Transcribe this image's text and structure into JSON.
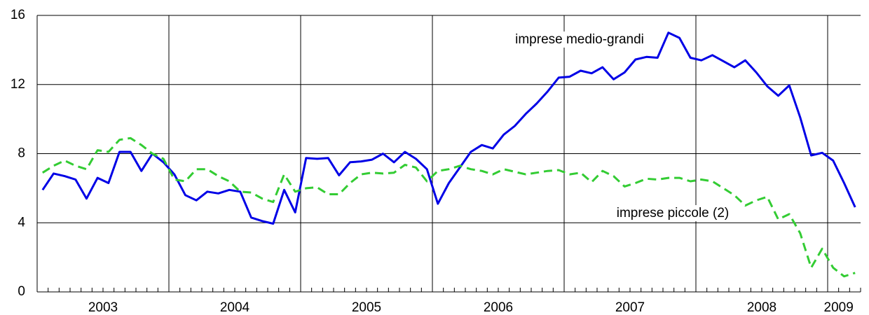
{
  "chart_data": {
    "type": "line",
    "categories": [
      null,
      null,
      null,
      null,
      null,
      null,
      "2003",
      null,
      null,
      null,
      null,
      null,
      null,
      null,
      null,
      null,
      null,
      null,
      "2004",
      null,
      null,
      null,
      null,
      null,
      null,
      null,
      null,
      null,
      null,
      null,
      "2005",
      null,
      null,
      null,
      null,
      null,
      null,
      null,
      null,
      null,
      null,
      null,
      "2006",
      null,
      null,
      null,
      null,
      null,
      null,
      null,
      null,
      null,
      null,
      null,
      "2007",
      null,
      null,
      null,
      null,
      null,
      null,
      null,
      null,
      null,
      null,
      null,
      "2008",
      null,
      null,
      null,
      null,
      null,
      null,
      "2009",
      null
    ],
    "series": [
      {
        "name": "imprese medio-grandi",
        "color": "#0000e6",
        "dash": false,
        "values": [
          5.9,
          6.85,
          6.7,
          6.5,
          5.4,
          6.6,
          6.3,
          8.1,
          8.1,
          7.0,
          8.0,
          7.5,
          6.8,
          5.6,
          5.3,
          5.8,
          5.7,
          5.9,
          5.8,
          4.3,
          4.1,
          3.95,
          5.9,
          4.6,
          7.75,
          7.7,
          7.75,
          6.75,
          7.5,
          7.55,
          7.65,
          8.0,
          7.5,
          8.1,
          7.7,
          7.1,
          5.1,
          6.3,
          7.2,
          8.1,
          8.5,
          8.3,
          9.1,
          9.6,
          10.3,
          10.9,
          11.6,
          12.4,
          12.45,
          12.8,
          12.65,
          13.0,
          12.3,
          12.7,
          13.45,
          13.6,
          13.55,
          15.0,
          14.7,
          13.55,
          13.4,
          13.7,
          13.35,
          13.0,
          13.4,
          12.7,
          11.9,
          11.35,
          11.95,
          10.1,
          7.9,
          8.05,
          7.6,
          6.3,
          4.9
        ]
      },
      {
        "name": "imprese piccole (2)",
        "color": "#33cc33",
        "dash": true,
        "values": [
          6.9,
          7.3,
          7.6,
          7.3,
          7.1,
          8.2,
          8.1,
          8.8,
          8.9,
          8.5,
          8.0,
          7.7,
          6.5,
          6.4,
          7.1,
          7.1,
          6.7,
          6.4,
          5.8,
          5.75,
          5.4,
          5.2,
          6.8,
          5.8,
          6.0,
          6.05,
          5.65,
          5.65,
          6.3,
          6.8,
          6.9,
          6.85,
          6.9,
          7.35,
          7.2,
          6.4,
          7.0,
          7.1,
          7.3,
          7.1,
          7.0,
          6.8,
          7.1,
          6.95,
          6.8,
          6.9,
          7.0,
          7.05,
          6.8,
          6.9,
          6.35,
          7.0,
          6.7,
          6.1,
          6.3,
          6.55,
          6.5,
          6.6,
          6.6,
          6.4,
          6.5,
          6.4,
          6.0,
          5.6,
          5.0,
          5.3,
          5.5,
          4.2,
          4.5,
          3.4,
          1.4,
          2.5,
          1.4,
          0.9,
          1.1
        ]
      }
    ],
    "ylim": [
      0,
      16
    ],
    "yticks": [
      0,
      4,
      8,
      12,
      16
    ],
    "grid": true
  }
}
